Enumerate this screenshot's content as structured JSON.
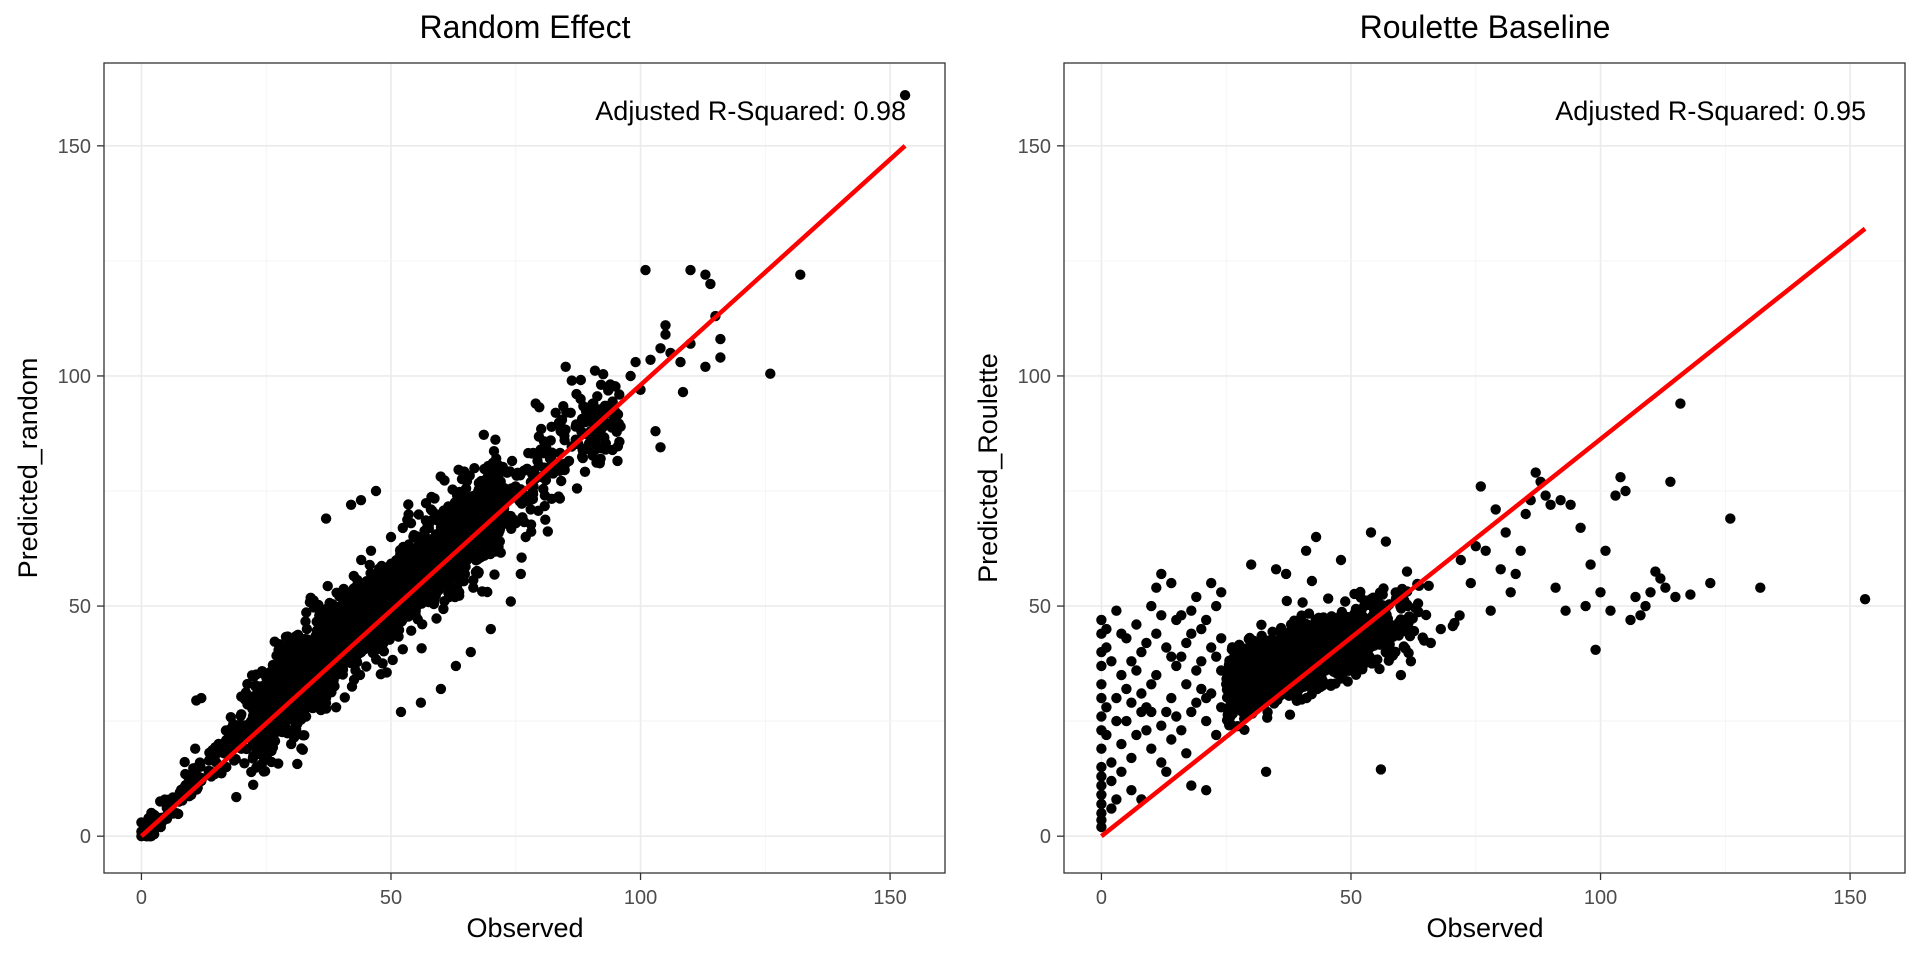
{
  "chart_data": [
    {
      "type": "scatter",
      "title": "Random Effect",
      "xlabel": "Observed",
      "ylabel": "Predicted_random",
      "xlim": [
        -7.5,
        161
      ],
      "ylim": [
        -8,
        168
      ],
      "xticks": [
        0,
        50,
        100,
        150
      ],
      "yticks": [
        0,
        50,
        100,
        150
      ],
      "grid": true,
      "annotation": "Adjusted R-Squared: 0.98",
      "annotation_position": "top-right",
      "point_color": "#000000",
      "fit_line": {
        "color": "#ff0000",
        "x": [
          0,
          153
        ],
        "y": [
          0,
          150
        ]
      },
      "cloud": {
        "x_range": [
          0,
          96
        ],
        "n": 2600,
        "y_formula": "0.955*x + 4.2 - 0.0009*(x-45)^2",
        "spread_sd": [
          2.8,
          5.2
        ]
      },
      "points": [
        [
          153,
          161
        ],
        [
          132,
          122
        ],
        [
          126,
          100.5
        ],
        [
          101,
          123
        ],
        [
          104,
          84.5
        ],
        [
          103,
          88
        ],
        [
          108.5,
          96.5
        ],
        [
          110,
          123
        ],
        [
          113,
          122
        ],
        [
          114,
          120
        ],
        [
          115,
          113
        ],
        [
          116,
          108
        ],
        [
          116,
          104
        ],
        [
          113,
          102
        ],
        [
          110,
          107
        ],
        [
          108,
          103
        ],
        [
          106,
          105
        ],
        [
          105,
          111
        ],
        [
          105,
          109
        ],
        [
          104,
          106
        ],
        [
          102,
          103.5
        ],
        [
          100,
          97
        ],
        [
          99,
          103
        ],
        [
          98,
          100
        ],
        [
          96,
          89
        ],
        [
          95,
          90
        ],
        [
          93,
          84
        ],
        [
          92,
          82
        ],
        [
          92,
          88
        ],
        [
          91,
          86
        ],
        [
          90,
          88
        ],
        [
          89,
          90
        ],
        [
          88,
          95
        ],
        [
          87,
          89
        ],
        [
          86,
          92
        ],
        [
          85,
          102
        ],
        [
          85,
          81
        ],
        [
          84,
          88
        ],
        [
          83,
          92
        ],
        [
          82,
          86
        ],
        [
          81,
          79
        ],
        [
          80,
          84
        ],
        [
          79,
          94
        ],
        [
          78,
          71
        ],
        [
          77,
          65
        ],
        [
          76,
          57
        ],
        [
          75,
          68
        ],
        [
          74,
          51
        ],
        [
          12,
          30
        ],
        [
          11,
          29.5
        ],
        [
          8,
          8
        ],
        [
          4,
          4
        ],
        [
          19,
          8.5
        ],
        [
          23,
          18
        ],
        [
          26,
          22
        ],
        [
          30,
          20
        ],
        [
          33,
          26
        ],
        [
          37,
          69
        ],
        [
          42,
          72
        ],
        [
          44,
          73
        ],
        [
          47,
          75
        ],
        [
          52,
          27
        ],
        [
          60,
          32
        ],
        [
          63,
          37
        ],
        [
          66,
          40
        ],
        [
          70,
          45
        ],
        [
          56,
          29
        ],
        [
          39,
          28
        ],
        [
          46,
          62
        ],
        [
          50,
          65
        ],
        [
          54,
          68
        ],
        [
          58,
          71
        ],
        [
          1,
          3
        ],
        [
          2,
          1
        ],
        [
          0,
          0
        ],
        [
          0,
          3
        ],
        [
          0,
          1
        ],
        [
          1,
          0
        ],
        [
          3,
          2
        ],
        [
          5,
          4
        ],
        [
          6,
          6
        ],
        [
          7,
          5
        ],
        [
          9,
          10
        ],
        [
          10,
          9
        ],
        [
          12,
          12
        ],
        [
          14,
          13
        ],
        [
          15,
          16
        ],
        [
          17,
          15
        ],
        [
          18,
          20
        ],
        [
          20,
          19
        ],
        [
          21,
          23
        ],
        [
          22,
          25
        ],
        [
          24,
          26
        ],
        [
          25,
          28
        ]
      ]
    },
    {
      "type": "scatter",
      "title": "Roulette Baseline",
      "xlabel": "Observed",
      "ylabel": "Predicted_Roulette",
      "xlim": [
        -7.5,
        161
      ],
      "ylim": [
        -8,
        168
      ],
      "xticks": [
        0,
        50,
        100,
        150
      ],
      "yticks": [
        0,
        50,
        100,
        150
      ],
      "grid": true,
      "annotation": "Adjusted R-Squared: 0.95",
      "annotation_position": "top-right",
      "point_color": "#000000",
      "fit_line": {
        "color": "#ff0000",
        "x": [
          0,
          153
        ],
        "y": [
          0,
          132
        ]
      },
      "cloud": {
        "x_range": [
          25,
          72
        ],
        "n": 1500,
        "y_formula": "22 + 0.42*x",
        "spread_sd": [
          3.8,
          3.8
        ]
      },
      "points": [
        [
          153,
          51.5
        ],
        [
          132,
          54
        ],
        [
          126,
          69
        ],
        [
          122,
          55
        ],
        [
          118,
          52.5
        ],
        [
          116,
          94
        ],
        [
          115,
          52
        ],
        [
          114,
          77
        ],
        [
          113,
          54
        ],
        [
          112,
          56
        ],
        [
          111,
          57.5
        ],
        [
          110,
          53
        ],
        [
          109,
          50
        ],
        [
          108,
          48
        ],
        [
          107,
          52
        ],
        [
          106,
          47
        ],
        [
          105,
          75
        ],
        [
          104,
          78
        ],
        [
          103,
          74
        ],
        [
          102,
          49
        ],
        [
          101,
          62
        ],
        [
          100,
          53
        ],
        [
          99,
          40.5
        ],
        [
          98,
          59
        ],
        [
          97,
          50
        ],
        [
          96,
          67
        ],
        [
          94,
          72
        ],
        [
          93,
          49
        ],
        [
          92,
          73
        ],
        [
          91,
          54
        ],
        [
          90,
          72
        ],
        [
          89,
          74
        ],
        [
          88,
          77
        ],
        [
          87,
          79
        ],
        [
          86,
          73
        ],
        [
          85,
          70
        ],
        [
          84,
          62
        ],
        [
          83,
          57
        ],
        [
          82,
          53
        ],
        [
          81,
          66
        ],
        [
          80,
          58
        ],
        [
          79,
          71
        ],
        [
          78,
          49
        ],
        [
          77,
          62
        ],
        [
          76,
          76
        ],
        [
          75,
          63
        ],
        [
          74,
          55
        ],
        [
          72,
          60
        ],
        [
          56,
          14.5
        ],
        [
          33,
          14
        ],
        [
          21,
          10
        ],
        [
          18,
          11
        ],
        [
          13,
          14
        ],
        [
          8,
          8
        ],
        [
          57,
          64
        ],
        [
          54,
          66
        ],
        [
          43,
          65
        ],
        [
          41,
          62
        ],
        [
          37,
          57
        ],
        [
          30,
          59
        ],
        [
          35,
          58
        ],
        [
          38,
          46
        ],
        [
          48,
          60
        ],
        [
          60,
          35
        ],
        [
          62,
          38
        ],
        [
          66,
          42
        ],
        [
          68,
          45
        ]
      ],
      "left_points": [
        [
          0,
          2
        ],
        [
          0,
          3.5
        ],
        [
          0,
          5
        ],
        [
          0,
          7
        ],
        [
          0,
          9
        ],
        [
          0,
          11
        ],
        [
          0,
          13
        ],
        [
          0,
          15
        ],
        [
          0,
          19
        ],
        [
          0,
          23
        ],
        [
          0,
          26
        ],
        [
          0,
          30
        ],
        [
          0,
          33
        ],
        [
          0,
          37
        ],
        [
          0,
          40
        ],
        [
          0,
          44
        ],
        [
          0,
          47
        ],
        [
          1,
          41
        ],
        [
          1,
          45
        ],
        [
          1,
          28
        ],
        [
          2,
          12
        ],
        [
          2,
          6
        ],
        [
          3,
          49
        ],
        [
          3,
          30
        ],
        [
          3,
          8
        ],
        [
          4,
          20
        ],
        [
          4,
          35
        ],
        [
          5,
          25
        ],
        [
          5,
          43
        ],
        [
          6,
          17
        ],
        [
          6,
          38
        ],
        [
          7,
          22
        ],
        [
          7,
          46
        ],
        [
          8,
          31
        ],
        [
          9,
          28
        ],
        [
          9,
          42
        ],
        [
          10,
          19
        ],
        [
          10,
          50
        ],
        [
          11,
          35
        ],
        [
          11,
          54
        ],
        [
          12,
          57
        ],
        [
          12,
          24
        ],
        [
          13,
          41
        ],
        [
          14,
          30
        ],
        [
          14,
          55
        ],
        [
          15,
          37
        ],
        [
          15,
          26
        ],
        [
          16,
          48
        ],
        [
          17,
          33
        ],
        [
          17,
          18
        ],
        [
          18,
          44
        ],
        [
          19,
          29
        ],
        [
          19,
          52
        ],
        [
          20,
          38
        ],
        [
          21,
          25
        ],
        [
          21,
          47
        ],
        [
          22,
          31
        ],
        [
          23,
          50
        ],
        [
          23,
          22
        ],
        [
          24,
          36
        ],
        [
          24,
          43
        ],
        [
          2,
          16
        ],
        [
          4,
          14
        ],
        [
          6,
          10
        ],
        [
          8,
          27
        ],
        [
          10,
          33
        ],
        [
          12,
          16
        ],
        [
          14,
          21
        ],
        [
          16,
          39
        ],
        [
          18,
          27
        ],
        [
          20,
          45
        ],
        [
          22,
          41
        ],
        [
          24,
          53
        ],
        [
          1,
          22
        ],
        [
          3,
          25
        ],
        [
          5,
          32
        ],
        [
          7,
          36
        ],
        [
          9,
          23
        ],
        [
          11,
          44
        ],
        [
          13,
          27
        ],
        [
          15,
          47
        ],
        [
          17,
          42
        ],
        [
          19,
          36
        ],
        [
          21,
          30
        ],
        [
          23,
          39
        ],
        [
          25,
          33
        ],
        [
          2,
          38
        ],
        [
          4,
          44
        ],
        [
          6,
          29
        ],
        [
          8,
          40
        ],
        [
          10,
          27
        ],
        [
          12,
          48
        ],
        [
          14,
          39
        ],
        [
          16,
          23
        ],
        [
          18,
          49
        ],
        [
          20,
          32
        ],
        [
          22,
          55
        ],
        [
          24,
          28
        ]
      ]
    }
  ]
}
